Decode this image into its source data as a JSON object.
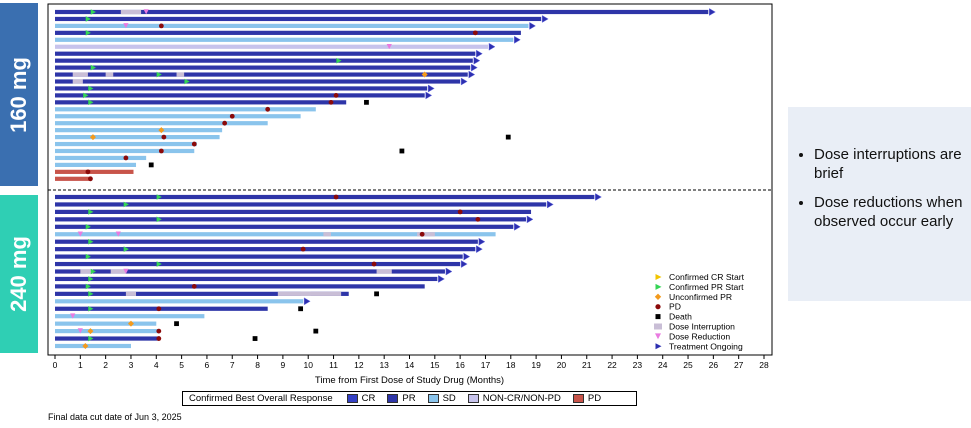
{
  "groups": {
    "top_label": "160 mg",
    "bottom_label": "240 mg"
  },
  "callout": {
    "bullets": [
      "Dose interruptions are brief",
      "Dose reductions when observed occur early"
    ]
  },
  "legend_events": [
    {
      "label": "Confirmed CR Start",
      "symbol": "tri-right",
      "color": "#f2c500"
    },
    {
      "label": "Confirmed PR Start",
      "symbol": "tri-right",
      "color": "#35d455"
    },
    {
      "label": "Unconfirmed PR",
      "symbol": "diamond",
      "color": "#f39a1c"
    },
    {
      "label": "PD",
      "symbol": "circle",
      "color": "#8b0a0a"
    },
    {
      "label": "Death",
      "symbol": "square",
      "color": "#000000"
    },
    {
      "label": "Dose Interruption",
      "symbol": "rect",
      "color": "#c9bed6"
    },
    {
      "label": "Dose Reduction",
      "symbol": "tri-down",
      "color": "#e97ae0"
    },
    {
      "label": "Treatment Ongoing",
      "symbol": "tri-right",
      "color": "#2d2fb0"
    }
  ],
  "bottom_legend": {
    "title": "Confirmed Best Overall Response",
    "items": [
      {
        "label": "CR",
        "color": "#3440c4"
      },
      {
        "label": "PR",
        "color": "#2e35a8"
      },
      {
        "label": "SD",
        "color": "#8ac4ec"
      },
      {
        "label": "NON-CR/NON-PD",
        "color": "#c7c3ec"
      },
      {
        "label": "PD",
        "color": "#c8544a"
      }
    ]
  },
  "footnote": "Final data cut date of Jun 3, 2025",
  "chart_data": {
    "type": "swimmer",
    "xlabel": "Time from First Dose of Study Drug (Months)",
    "xlim": [
      0,
      28
    ],
    "xticks": [
      0,
      1,
      2,
      3,
      4,
      5,
      6,
      7,
      8,
      9,
      10,
      11,
      12,
      13,
      14,
      15,
      16,
      17,
      18,
      19,
      20,
      21,
      22,
      23,
      24,
      25,
      26,
      27,
      28
    ],
    "colors": {
      "CR": "#3440c4",
      "PR": "#2e35a8",
      "SD": "#8ac4ec",
      "NONCR": "#c7c3ec",
      "PD": "#c8544a",
      "arrow": "#2d2fb0",
      "interrupt": "#c9bed6",
      "reduction": "#e97ae0",
      "crstart": "#f2c500",
      "prstart": "#35d455",
      "upr": "#f39a1c",
      "pd": "#8b0a0a",
      "death": "#000000"
    },
    "group_160": [
      {
        "r": "PR",
        "end": 25.8,
        "on": 1,
        "pr": 1.5,
        "int": [
          [
            2.6,
            3.4
          ]
        ],
        "red": [
          3.6
        ]
      },
      {
        "r": "PR",
        "end": 19.2,
        "on": 1,
        "pr": 1.3
      },
      {
        "r": "SD",
        "end": 18.7,
        "on": 1,
        "pd": 4.2,
        "red": [
          2.8
        ]
      },
      {
        "r": "PR",
        "end": 18.4,
        "pr": 1.3,
        "pd": 16.6
      },
      {
        "r": "SD",
        "end": 18.1,
        "on": 1
      },
      {
        "r": "NONCR",
        "end": 17.1,
        "on": 1,
        "red": [
          13.2
        ]
      },
      {
        "r": "PR",
        "end": 16.6,
        "on": 1
      },
      {
        "r": "PR",
        "end": 16.5,
        "on": 1,
        "pr": 11.2
      },
      {
        "r": "PR",
        "end": 16.4,
        "on": 1,
        "pr": 1.5
      },
      {
        "r": "PR",
        "end": 16.3,
        "on": 1,
        "pr": 4.1,
        "upr": 14.6,
        "int": [
          [
            0.7,
            1.3
          ],
          [
            2.0,
            2.3
          ],
          [
            4.8,
            5.1
          ]
        ]
      },
      {
        "r": "PR",
        "end": 16.0,
        "on": 1,
        "pr": 5.2,
        "int": [
          [
            0.7,
            1.1
          ]
        ]
      },
      {
        "r": "PR",
        "end": 14.7,
        "on": 1,
        "pr": 1.4
      },
      {
        "r": "PR",
        "end": 14.6,
        "on": 1,
        "pr": 1.2,
        "pd": 11.1
      },
      {
        "r": "PR",
        "end": 11.5,
        "pr": 1.4,
        "pd": 10.9,
        "death": 12.3
      },
      {
        "r": "SD",
        "end": 10.3,
        "pd": 8.4
      },
      {
        "r": "SD",
        "end": 9.7,
        "pd": 7.0
      },
      {
        "r": "SD",
        "end": 8.4,
        "pd": 6.7
      },
      {
        "r": "SD",
        "end": 6.6,
        "upr": 4.2
      },
      {
        "r": "SD",
        "end": 6.5,
        "upr": 1.5,
        "pd": 4.3,
        "death": 17.9
      },
      {
        "r": "SD",
        "end": 5.6,
        "pd": 5.5
      },
      {
        "r": "SD",
        "end": 5.5,
        "pd": 4.2,
        "death": 13.7
      },
      {
        "r": "SD",
        "end": 3.6,
        "pd": 2.8
      },
      {
        "r": "SD",
        "end": 3.2,
        "death": 3.8
      },
      {
        "r": "PD",
        "end": 3.1,
        "pd": 1.3
      },
      {
        "r": "PD",
        "end": 1.4,
        "pd": 1.4
      }
    ],
    "group_240": [
      {
        "r": "PR",
        "end": 21.3,
        "on": 1,
        "pr": 4.1,
        "pd": 11.1
      },
      {
        "r": "PR",
        "end": 19.4,
        "on": 1,
        "pr": 2.8
      },
      {
        "r": "PR",
        "end": 18.8,
        "pr": 1.4,
        "pd": 16.0
      },
      {
        "r": "PR",
        "end": 18.6,
        "on": 1,
        "pr": 4.1,
        "pd": 16.7
      },
      {
        "r": "PR",
        "end": 18.1,
        "on": 1,
        "pr": 1.3
      },
      {
        "r": "SD",
        "end": 17.4,
        "red": [
          1.0,
          2.5
        ],
        "pd": 14.5,
        "int": [
          [
            14.3,
            15.0
          ],
          [
            10.6,
            10.9
          ]
        ]
      },
      {
        "r": "PR",
        "end": 16.7,
        "on": 1,
        "pr": 1.4
      },
      {
        "r": "PR",
        "end": 16.6,
        "on": 1,
        "pr": 2.8,
        "pd": 9.8
      },
      {
        "r": "PR",
        "end": 16.1,
        "on": 1,
        "pr": 1.3
      },
      {
        "r": "PR",
        "end": 16.0,
        "on": 1,
        "pr": 4.1,
        "pd": 12.6
      },
      {
        "r": "PR",
        "end": 15.4,
        "on": 1,
        "pr": 1.5,
        "red": [
          2.8
        ],
        "int": [
          [
            1.0,
            1.5
          ],
          [
            2.2,
            2.8
          ],
          [
            12.7,
            13.3
          ]
        ]
      },
      {
        "r": "PR",
        "end": 15.1,
        "on": 1,
        "pr": 1.4
      },
      {
        "r": "PR",
        "end": 14.6,
        "pr": 1.3,
        "pd": 5.5
      },
      {
        "r": "PR",
        "end": 11.6,
        "pr": 1.4,
        "int": [
          [
            2.8,
            3.2
          ],
          [
            8.8,
            11.3
          ],
          [
            9.7,
            10.1
          ]
        ],
        "death": 12.7
      },
      {
        "r": "SD",
        "end": 9.8,
        "on": 1
      },
      {
        "r": "PR",
        "end": 8.4,
        "pr": 1.4,
        "pd": 4.1,
        "death": 9.7
      },
      {
        "r": "SD",
        "end": 5.9,
        "red": [
          0.7
        ]
      },
      {
        "r": "SD",
        "end": 4.0,
        "upr": 3.0,
        "death": 4.8
      },
      {
        "r": "SD",
        "end": 4.1,
        "red": [
          1.0
        ],
        "upr": 1.4,
        "pd": 4.1,
        "death": 10.3
      },
      {
        "r": "PR",
        "end": 4.1,
        "pr": 1.4,
        "pd": 4.1,
        "death": 7.9
      },
      {
        "r": "SD",
        "end": 3.0,
        "upr": 1.2
      }
    ]
  }
}
